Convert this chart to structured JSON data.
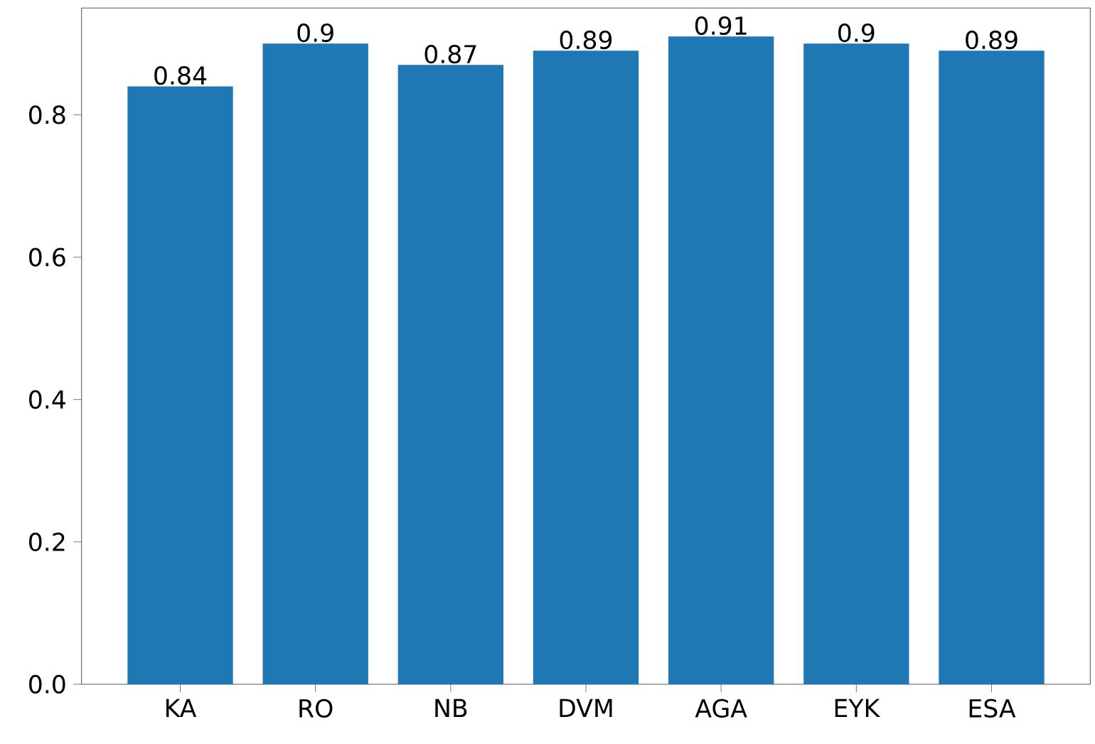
{
  "chart_data": {
    "type": "bar",
    "categories": [
      "KA",
      "RO",
      "NB",
      "DVM",
      "AGA",
      "EYK",
      "ESA"
    ],
    "values": [
      0.84,
      0.9,
      0.87,
      0.89,
      0.91,
      0.9,
      0.89
    ],
    "color": "#1f77b4",
    "ylim": [
      0,
      0.95
    ],
    "yticks": [
      {
        "value": 0,
        "label": "0.0"
      },
      {
        "value": 0.2,
        "label": "0.2"
      },
      {
        "value": 0.4,
        "label": "0.4"
      },
      {
        "value": 0.6,
        "label": "0.6"
      },
      {
        "value": 0.8,
        "label": "0.8"
      }
    ],
    "data_labels": true
  }
}
